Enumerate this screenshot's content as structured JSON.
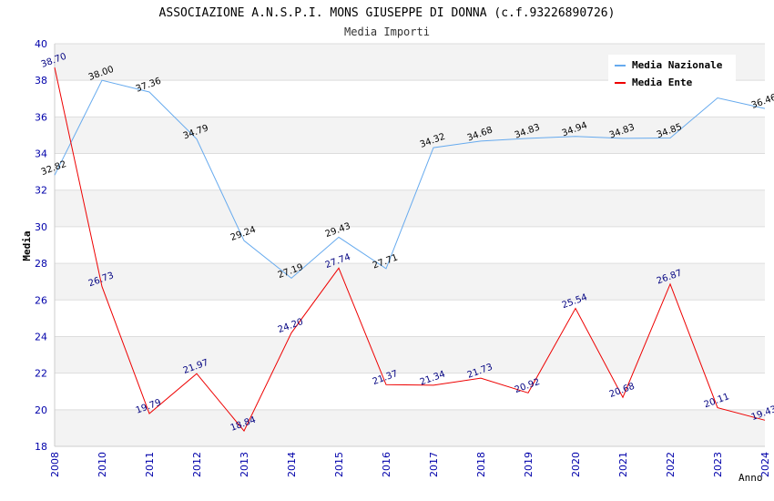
{
  "chart_data": {
    "type": "line",
    "title": "ASSOCIAZIONE A.N.S.P.I. MONS GIUSEPPE DI DONNA (c.f.93226890726)",
    "subtitle": "Media Importi",
    "ylabel": "Media",
    "xlabel": "Anno",
    "x": [
      "2008",
      "2010",
      "2011",
      "2012",
      "2013",
      "2014",
      "2015",
      "2016",
      "2017",
      "2018",
      "2019",
      "2020",
      "2021",
      "2022",
      "2023",
      "2024"
    ],
    "ylim": [
      18,
      40
    ],
    "yticks": [
      "18",
      "20",
      "22",
      "24",
      "26",
      "28",
      "30",
      "32",
      "34",
      "36",
      "38",
      "40"
    ],
    "grid": true,
    "legend_position": "top-right",
    "series": [
      {
        "name": "Media Nazionale",
        "color": "#66aaee",
        "values": [
          32.82,
          38.0,
          37.36,
          34.79,
          29.24,
          27.19,
          29.43,
          27.71,
          34.32,
          34.68,
          34.83,
          34.94,
          34.83,
          34.85,
          37.04,
          36.46
        ],
        "labels": [
          "32.82",
          "38.00",
          "37.36",
          "34.79",
          "29.24",
          "27.19",
          "29.43",
          "27.71",
          "34.32",
          "34.68",
          "34.83",
          "34.94",
          "34.83",
          "34.85",
          "",
          "36.46"
        ]
      },
      {
        "name": "Media Ente",
        "color": "#ee0000",
        "values": [
          38.7,
          26.73,
          19.79,
          21.97,
          18.84,
          24.2,
          27.74,
          21.37,
          21.34,
          21.73,
          20.92,
          25.54,
          20.68,
          26.87,
          20.11,
          19.43
        ],
        "labels": [
          "38.70",
          "26.73",
          "19.79",
          "21.97",
          "18.84",
          "24.20",
          "27.74",
          "21.37",
          "21.34",
          "21.73",
          "20.92",
          "25.54",
          "20.68",
          "26.87",
          "20.11",
          "19.43"
        ]
      }
    ]
  }
}
